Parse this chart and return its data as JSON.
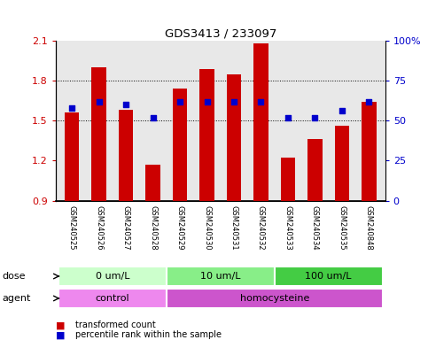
{
  "title": "GDS3413 / 233097",
  "samples": [
    "GSM240525",
    "GSM240526",
    "GSM240527",
    "GSM240528",
    "GSM240529",
    "GSM240530",
    "GSM240531",
    "GSM240532",
    "GSM240533",
    "GSM240534",
    "GSM240535",
    "GSM240848"
  ],
  "transformed_count": [
    1.56,
    1.9,
    1.58,
    1.17,
    1.74,
    1.89,
    1.85,
    2.08,
    1.22,
    1.36,
    1.46,
    1.64
  ],
  "percentile_rank": [
    58,
    62,
    60,
    52,
    62,
    62,
    62,
    62,
    52,
    52,
    56,
    62
  ],
  "bar_color": "#cc0000",
  "dot_color": "#0000cc",
  "ylim_left": [
    0.9,
    2.1
  ],
  "ylim_right": [
    0,
    100
  ],
  "yticks_left": [
    0.9,
    1.2,
    1.5,
    1.8,
    2.1
  ],
  "yticks_right": [
    0,
    25,
    50,
    75,
    100
  ],
  "ytick_labels_right": [
    "0",
    "25",
    "50",
    "75",
    "100%"
  ],
  "dotted_lines": [
    1.5,
    1.8
  ],
  "dose_groups": [
    {
      "label": "0 um/L",
      "start": 0,
      "end": 4,
      "color": "#ccffcc"
    },
    {
      "label": "10 um/L",
      "start": 4,
      "end": 8,
      "color": "#88ee88"
    },
    {
      "label": "100 um/L",
      "start": 8,
      "end": 12,
      "color": "#44cc44"
    }
  ],
  "agent_groups": [
    {
      "label": "control",
      "start": 0,
      "end": 4,
      "color": "#ee88ee"
    },
    {
      "label": "homocysteine",
      "start": 4,
      "end": 12,
      "color": "#cc55cc"
    }
  ],
  "dose_label": "dose",
  "agent_label": "agent",
  "legend_items": [
    {
      "color": "#cc0000",
      "label": "transformed count"
    },
    {
      "color": "#0000cc",
      "label": "percentile rank within the sample"
    }
  ],
  "baseline": 0.9,
  "axis_bg": "#e8e8e8",
  "bar_width": 0.55
}
